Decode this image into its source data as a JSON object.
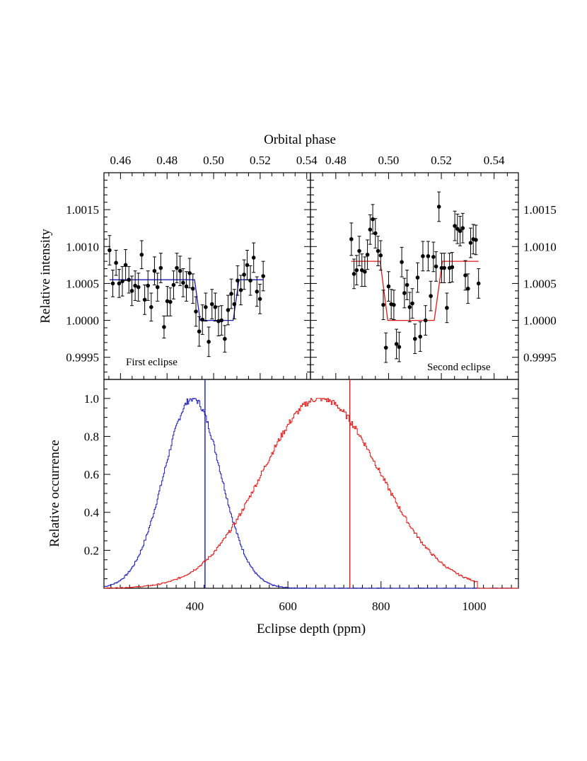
{
  "chart_data": [
    {
      "type": "scatter",
      "label": "First eclipse",
      "top_axis": {
        "title": "Orbital phase",
        "ticks": [
          "0.46",
          "0.48",
          "0.50",
          "0.52",
          "0.54"
        ],
        "range": [
          0.4529,
          0.5416
        ]
      },
      "y_axis": {
        "title": "Relative intensity",
        "ticks": [
          "0.9995",
          "1.0000",
          "1.0005",
          "1.0010",
          "1.0015"
        ],
        "range": [
          0.9992,
          1.002
        ]
      },
      "points_phase_intensity_err": [
        [
          0.4553,
          1.00095,
          0.0002
        ],
        [
          0.4567,
          1.0005,
          0.00018
        ],
        [
          0.4581,
          1.00078,
          0.00017
        ],
        [
          0.4594,
          1.0005,
          0.00019
        ],
        [
          0.4608,
          1.00053,
          0.0002
        ],
        [
          0.4622,
          1.00075,
          0.00021
        ],
        [
          0.4636,
          1.00055,
          0.00018
        ],
        [
          0.4649,
          1.0004,
          0.0002
        ],
        [
          0.4663,
          1.00047,
          0.0002
        ],
        [
          0.4677,
          1.00045,
          0.00019
        ],
        [
          0.4691,
          1.00089,
          0.00019
        ],
        [
          0.4704,
          1.00028,
          0.0002
        ],
        [
          0.4718,
          1.00047,
          0.0002
        ],
        [
          0.4732,
          1.00018,
          0.00019
        ],
        [
          0.4746,
          1.00067,
          0.00019
        ],
        [
          0.4759,
          1.00045,
          0.00019
        ],
        [
          0.4773,
          1.00071,
          0.0002
        ],
        [
          0.4787,
          0.99991,
          0.00015
        ],
        [
          0.4801,
          1.00026,
          0.0002
        ],
        [
          0.4814,
          1.00025,
          0.00019
        ],
        [
          0.4828,
          1.00048,
          0.00019
        ],
        [
          0.4842,
          1.00071,
          0.0002
        ],
        [
          0.4856,
          1.00067,
          0.0002
        ],
        [
          0.4869,
          1.00051,
          0.00019
        ],
        [
          0.4883,
          1.00046,
          0.0002
        ],
        [
          0.4897,
          1.00064,
          0.0002
        ],
        [
          0.4911,
          1.00043,
          0.0002
        ],
        [
          0.4924,
          1.00012,
          0.0002
        ],
        [
          0.4938,
          0.99985,
          0.0002
        ],
        [
          0.4952,
          1.00001,
          0.0002
        ],
        [
          0.4966,
          1.00018,
          0.00019
        ],
        [
          0.4979,
          0.99971,
          0.0002
        ],
        [
          0.4993,
          1.00022,
          0.0002
        ],
        [
          0.5007,
          1.00018,
          0.00019
        ],
        [
          0.5021,
          0.99999,
          0.0002
        ],
        [
          0.5034,
          1.0,
          0.0002
        ],
        [
          0.5048,
          0.99975,
          0.00018
        ],
        [
          0.5062,
          1.00014,
          0.0002
        ],
        [
          0.5076,
          1.00036,
          0.0002
        ],
        [
          0.5089,
          1.00022,
          0.0002
        ],
        [
          0.5103,
          1.00054,
          0.0002
        ],
        [
          0.5117,
          1.00041,
          0.0002
        ],
        [
          0.5131,
          1.00062,
          0.0002
        ],
        [
          0.5144,
          1.00075,
          0.0002
        ],
        [
          0.5158,
          1.00054,
          0.0002
        ],
        [
          0.5172,
          1.00085,
          0.0002
        ],
        [
          0.5186,
          1.00039,
          0.0002
        ],
        [
          0.5199,
          1.00029,
          0.0002
        ],
        [
          0.5213,
          1.0006,
          0.0002
        ]
      ],
      "model_line_phase_intensity": [
        [
          0.4553,
          1.00055
        ],
        [
          0.4918,
          1.00055
        ],
        [
          0.4942,
          1.0
        ],
        [
          0.5084,
          1.0
        ],
        [
          0.5109,
          1.00055
        ],
        [
          0.5213,
          1.00055
        ]
      ],
      "line_color": "#1a1ab8"
    },
    {
      "type": "scatter",
      "label": "Second eclipse",
      "top_axis": {
        "ticks": [
          "0.48",
          "0.50",
          "0.52",
          "0.54"
        ],
        "range": [
          0.4704,
          0.5492
        ]
      },
      "y_axis": {
        "ticks": [
          "0.9995",
          "1.0000",
          "1.0005",
          "1.0010",
          "1.0015"
        ],
        "range": [
          0.9992,
          1.002
        ]
      },
      "points_phase_intensity_err": [
        [
          0.4859,
          1.0011,
          0.00022
        ],
        [
          0.4869,
          1.00063,
          0.0002
        ],
        [
          0.4879,
          1.00068,
          0.0002
        ],
        [
          0.4889,
          1.00094,
          0.0002
        ],
        [
          0.4899,
          1.00068,
          0.00022
        ],
        [
          0.491,
          1.00066,
          0.0002
        ],
        [
          0.492,
          1.00089,
          0.0002
        ],
        [
          0.493,
          1.00123,
          0.0002
        ],
        [
          0.494,
          1.00137,
          0.0002
        ],
        [
          0.495,
          1.00118,
          0.0002
        ],
        [
          0.496,
          1.00094,
          0.0002
        ],
        [
          0.497,
          1.00088,
          0.0002
        ],
        [
          0.498,
          1.00021,
          0.0002
        ],
        [
          0.499,
          0.99963,
          0.0002
        ],
        [
          0.5,
          1.00046,
          0.0002
        ],
        [
          0.501,
          1.00022,
          0.0002
        ],
        [
          0.502,
          1.00021,
          0.0002
        ],
        [
          0.503,
          0.99968,
          0.0002
        ],
        [
          0.504,
          0.99964,
          0.0002
        ],
        [
          0.505,
          1.00079,
          0.0002
        ],
        [
          0.506,
          1.00037,
          0.0002
        ],
        [
          0.507,
          1.00048,
          0.0002
        ],
        [
          0.508,
          1.00018,
          0.0002
        ],
        [
          0.509,
          1.00023,
          0.0002
        ],
        [
          0.51,
          0.99975,
          0.0002
        ],
        [
          0.511,
          1.00058,
          0.0002
        ],
        [
          0.512,
          0.99978,
          0.0002
        ],
        [
          0.513,
          1.00087,
          0.0002
        ],
        [
          0.514,
          1.0,
          0.0002
        ],
        [
          0.515,
          1.00087,
          0.0002
        ],
        [
          0.516,
          1.00033,
          0.0002
        ],
        [
          0.517,
          1.00086,
          0.0002
        ],
        [
          0.518,
          1.00073,
          0.0002
        ],
        [
          0.5191,
          1.00154,
          0.0002
        ],
        [
          0.5201,
          1.00071,
          0.0002
        ],
        [
          0.5211,
          1.00071,
          0.0002
        ],
        [
          0.5221,
          1.00017,
          0.0002
        ],
        [
          0.5231,
          1.00071,
          0.0002
        ],
        [
          0.5241,
          1.00072,
          0.0002
        ],
        [
          0.5251,
          1.00128,
          0.0002
        ],
        [
          0.5261,
          1.00124,
          0.0002
        ],
        [
          0.5271,
          1.00121,
          0.0002
        ],
        [
          0.5281,
          1.00125,
          0.0002
        ],
        [
          0.5291,
          1.00061,
          0.0002
        ],
        [
          0.5301,
          1.00043,
          0.0002
        ],
        [
          0.5311,
          1.00105,
          0.0002
        ],
        [
          0.5321,
          1.0011,
          0.0002
        ],
        [
          0.5331,
          1.00109,
          0.0002
        ],
        [
          0.5341,
          1.0005,
          0.0002
        ]
      ],
      "model_line_phase_intensity": [
        [
          0.4859,
          1.0008
        ],
        [
          0.4968,
          1.0008
        ],
        [
          0.4997,
          1.0
        ],
        [
          0.5173,
          1.0
        ],
        [
          0.5204,
          1.0008
        ],
        [
          0.5341,
          1.0008
        ]
      ],
      "line_color": "#e01818"
    },
    {
      "type": "line",
      "xlabel": "Eclipse depth (ppm)",
      "ylabel": "Relative occurrence",
      "x_ticks": [
        "400",
        "600",
        "800",
        "1000"
      ],
      "y_ticks": [
        "0.2",
        "0.4",
        "0.6",
        "0.8",
        "1.0"
      ],
      "xlim": [
        205,
        1095
      ],
      "ylim": [
        0.0,
        1.1
      ],
      "series": [
        {
          "color": "#1a1ab8",
          "peak": 395,
          "sigma_left": 62,
          "sigma_right": 60,
          "marker": 422
        },
        {
          "color": "#e01818",
          "peak": 668,
          "sigma_left": 125,
          "sigma_right": 130,
          "marker": 733
        }
      ]
    }
  ]
}
